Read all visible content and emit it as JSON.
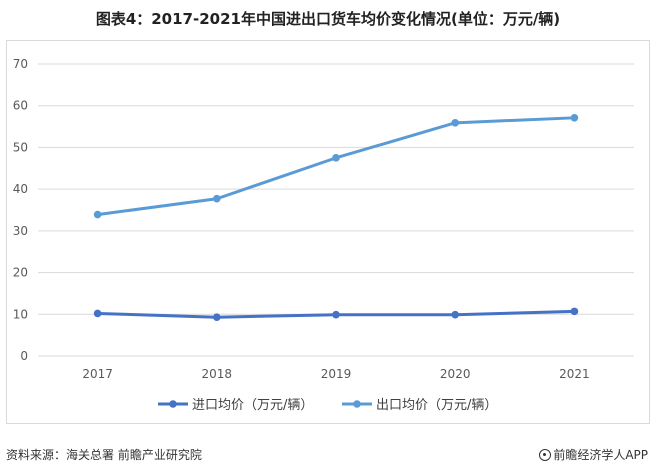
{
  "title": "图表4：2017-2021年中国进出口货车均价变化情况(单位：万元/辆)",
  "footer": {
    "source": "资料来源：海关总署 前瞻产业研究院",
    "brand": "前瞻经济学人APP",
    "brand_icon": "qianzhan-logo-icon"
  },
  "colors": {
    "import": "#4472C4",
    "export": "#5B9BD5",
    "grid": "#d9d9d9"
  },
  "chart_data": {
    "type": "line",
    "title": "图表4：2017-2021年中国进出口货车均价变化情况(单位：万元/辆)",
    "categories": [
      "2017",
      "2018",
      "2019",
      "2020",
      "2021"
    ],
    "yticks": [
      "0",
      "10",
      "20",
      "30",
      "40",
      "50",
      "60",
      "70"
    ],
    "ylim": [
      0,
      70
    ],
    "grid": true,
    "legend": "bottom",
    "series": [
      {
        "name": "进口均价（万元/辆）",
        "values": [
          10.2,
          9.3,
          9.9,
          9.9,
          10.7
        ]
      },
      {
        "name": "出口均价（万元/辆）",
        "values": [
          33.9,
          37.7,
          47.5,
          55.9,
          57.1
        ]
      }
    ]
  }
}
